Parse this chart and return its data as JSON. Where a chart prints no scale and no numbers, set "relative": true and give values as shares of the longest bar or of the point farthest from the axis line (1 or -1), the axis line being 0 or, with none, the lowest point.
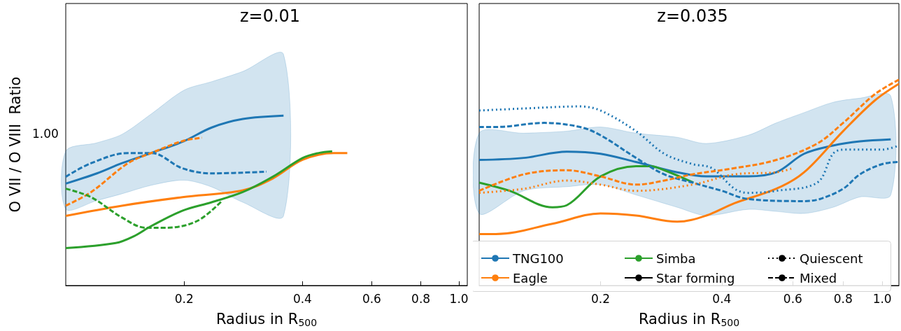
{
  "chart_data": [
    {
      "type": "line",
      "title": "z=0.01",
      "xlabel": "Radius in R$_{500}$",
      "ylabel": "O VII / O VIII  Ratio",
      "annotations": [
        "1.00"
      ],
      "relative": true,
      "log": "x",
      "xlim": [
        0.1,
        1.05
      ],
      "xticks": [
        0.2,
        0.4,
        0.6,
        0.8,
        {
          "value": 1,
          "label": "1.0"
        }
      ],
      "marker": "none",
      "series": [
        {
          "color": "#1f77b4",
          "line_style": "solid",
          "x": [
            0.1,
            0.12,
            0.139,
            0.165,
            0.2,
            0.235,
            0.282,
            0.358
          ],
          "values": [
            0.6,
            0.66,
            0.72,
            0.78,
            0.85,
            0.93,
            0.98,
            1
          ],
          "lower": [
            0.45,
            0.5,
            0.54,
            0.59,
            0.62,
            0.58,
            0.49,
            0.41
          ],
          "upper": [
            0.79,
            0.84,
            0.89,
            1.01,
            1.15,
            1.2,
            1.26,
            1.36
          ]
        },
        {
          "color": "#1f77b4",
          "line_style": "dashed",
          "x": [
            0.1,
            0.116,
            0.144,
            0.165,
            0.198,
            0.235,
            0.324
          ],
          "values": [
            0.64,
            0.72,
            0.78,
            0.78,
            0.69,
            0.66,
            0.67
          ]
        },
        {
          "color": "#ff7f0e",
          "line_style": "dashed",
          "x": [
            0.1,
            0.116,
            0.144,
            0.165,
            0.198,
            0.222
          ],
          "values": [
            0.47,
            0.55,
            0.72,
            0.78,
            0.85,
            0.87
          ]
        },
        {
          "color": "#ff7f0e",
          "line_style": "solid",
          "x": [
            0.1,
            0.139,
            0.198,
            0.282,
            0.336,
            0.4,
            0.48,
            0.52
          ],
          "values": [
            0.41,
            0.47,
            0.52,
            0.56,
            0.63,
            0.74,
            0.78,
            0.78
          ]
        },
        {
          "color": "#2ca02c",
          "line_style": "solid",
          "x": [
            0.1,
            0.134,
            0.149,
            0.165,
            0.198,
            0.235,
            0.282,
            0.336,
            0.4,
            0.44,
            0.476
          ],
          "values": [
            0.22,
            0.25,
            0.29,
            0.35,
            0.44,
            0.49,
            0.55,
            0.64,
            0.75,
            0.78,
            0.79
          ]
        },
        {
          "color": "#2ca02c",
          "line_style": "dashed",
          "x": [
            0.1,
            0.116,
            0.139,
            0.16,
            0.18,
            0.216,
            0.25
          ],
          "values": [
            0.57,
            0.52,
            0.4,
            0.34,
            0.34,
            0.38,
            0.5
          ]
        }
      ]
    },
    {
      "type": "line",
      "title": "z=0.035",
      "xlabel": "Radius in R$_{500}$",
      "relative": true,
      "log": "x",
      "legend": "bottom right",
      "xlim": [
        0.1,
        1.1
      ],
      "xticks": [
        0.2,
        0.4,
        0.6,
        0.8,
        {
          "value": 1,
          "label": "1.0"
        }
      ],
      "marker": "none",
      "series": [
        {
          "name": "TNG100",
          "color": "#1f77b4",
          "line_style": "solid",
          "x": [
            0.1,
            0.129,
            0.165,
            0.2,
            0.245,
            0.31,
            0.366,
            0.465,
            0.546,
            0.64,
            0.755,
            0.88,
            1.05
          ],
          "values": [
            0.61,
            0.62,
            0.65,
            0.64,
            0.6,
            0.55,
            0.53,
            0.53,
            0.55,
            0.64,
            0.68,
            0.7,
            0.71
          ],
          "lower": [
            0.35,
            0.46,
            0.48,
            0.49,
            0.44,
            0.38,
            0.34,
            0.37,
            0.36,
            0.35,
            0.38,
            0.43,
            0.44
          ],
          "upper": [
            0.74,
            0.74,
            0.75,
            0.77,
            0.74,
            0.72,
            0.69,
            0.73,
            0.79,
            0.84,
            0.89,
            0.91,
            0.92
          ]
        },
        {
          "name": "Eagle",
          "color": "#ff7f0e",
          "line_style": "solid",
          "x": [
            0.1,
            0.11,
            0.152,
            0.2,
            0.245,
            0.31,
            0.366,
            0.43,
            0.546,
            0.64,
            0.8,
            0.96,
            1.1
          ],
          "values": [
            0.25,
            0.25,
            0.3,
            0.35,
            0.34,
            0.31,
            0.34,
            0.4,
            0.47,
            0.55,
            0.75,
            0.9,
            0.98
          ]
        },
        {
          "name": "Simba",
          "color": "#2ca02c",
          "line_style": "solid",
          "x": [
            0.1,
            0.119,
            0.152,
            0.165,
            0.2,
            0.245,
            0.266,
            0.288,
            0.34
          ],
          "values": [
            0.5,
            0.46,
            0.38,
            0.39,
            0.53,
            0.58,
            0.58,
            0.56,
            0.5
          ]
        },
        {
          "name": "Star forming",
          "color": "#000000",
          "line_style": "solid"
        },
        {
          "name": "Quiescent",
          "color": "#000000",
          "line_style": "dotted"
        },
        {
          "name": "Mixed",
          "color": "#000000",
          "line_style": "dashed"
        },
        {
          "color": "#1f77b4",
          "line_style": "dotted",
          "x": [
            0.1,
            0.129,
            0.178,
            0.2,
            0.245,
            0.288,
            0.338,
            0.378,
            0.43,
            0.465,
            0.546,
            0.69,
            0.755,
            0.8,
            1.0,
            1.1
          ],
          "values": [
            0.85,
            0.86,
            0.87,
            0.85,
            0.75,
            0.64,
            0.59,
            0.57,
            0.47,
            0.45,
            0.46,
            0.5,
            0.64,
            0.66,
            0.66,
            0.68
          ]
        },
        {
          "color": "#1f77b4",
          "line_style": "dashed",
          "x": [
            0.1,
            0.11,
            0.145,
            0.178,
            0.2,
            0.245,
            0.288,
            0.338,
            0.4,
            0.465,
            0.64,
            0.7,
            0.8,
            0.88,
            1.0,
            1.1
          ],
          "values": [
            0.77,
            0.77,
            0.79,
            0.77,
            0.73,
            0.62,
            0.54,
            0.5,
            0.46,
            0.42,
            0.41,
            0.42,
            0.47,
            0.54,
            0.59,
            0.6
          ]
        },
        {
          "color": "#ff7f0e",
          "line_style": "dashed",
          "x": [
            0.1,
            0.129,
            0.165,
            0.2,
            0.245,
            0.288,
            0.338,
            0.43,
            0.546,
            0.69,
            0.8,
            0.96,
            1.1
          ],
          "values": [
            0.46,
            0.54,
            0.56,
            0.53,
            0.49,
            0.51,
            0.54,
            0.57,
            0.61,
            0.69,
            0.79,
            0.93,
            1
          ]
        },
        {
          "color": "#ff7f0e",
          "line_style": "dotted",
          "x": [
            0.1,
            0.129,
            0.165,
            0.2,
            0.245,
            0.338,
            0.43,
            0.546,
            0.6
          ],
          "values": [
            0.45,
            0.47,
            0.51,
            0.49,
            0.46,
            0.49,
            0.54,
            0.55,
            0.57
          ]
        }
      ]
    }
  ]
}
